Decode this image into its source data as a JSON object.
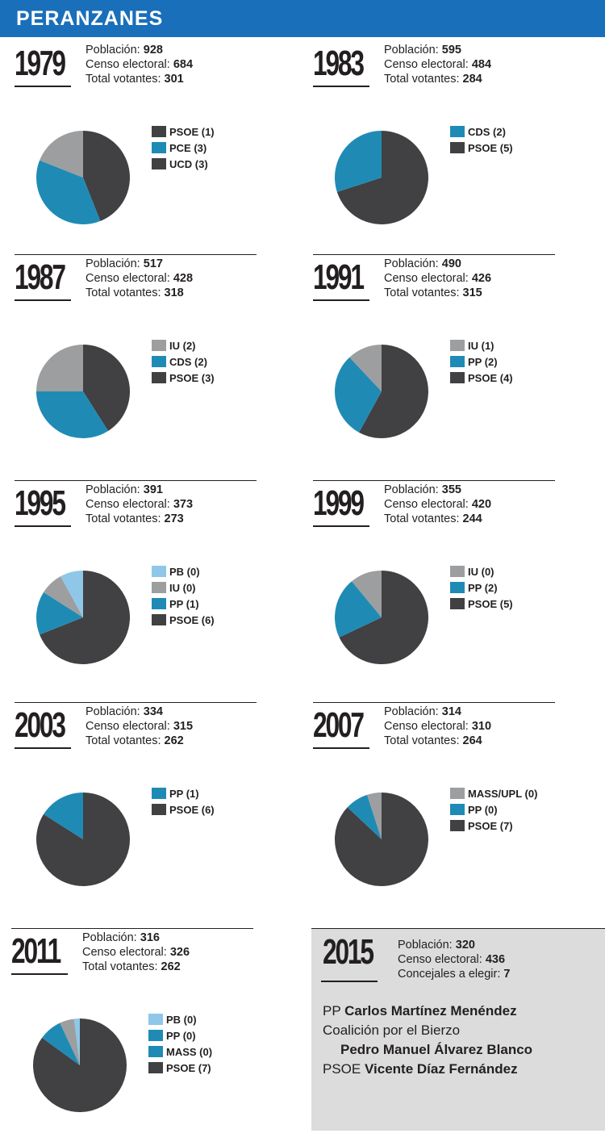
{
  "title": "PERANZANES",
  "colors": {
    "header": "#1a6fba",
    "PSOE": "#414042",
    "PP": "#1f8bb5",
    "CDS": "#1f8bb5",
    "PCE": "#1f8bb5",
    "MASS": "#1f8bb5",
    "UCD": "#414042",
    "IU": "#9d9e9f",
    "MASS/UPL": "#9d9e9f",
    "PB": "#8ec7e8"
  },
  "labels": {
    "poblacion": "Población: ",
    "censo": "Censo electoral: ",
    "votantes": "Total votantes: ",
    "concejales": "Concejales a elegir: "
  },
  "chart_data": [
    {
      "type": "pie",
      "year": "1979",
      "poblacion": "928",
      "censo": "684",
      "votantes": "301",
      "legend": [
        "PSOE (1)",
        "PCE (3)",
        "UCD (3)"
      ],
      "slices": [
        {
          "party": "UCD",
          "value": 44,
          "color": "#414042"
        },
        {
          "party": "PCE",
          "value": 37,
          "color": "#1f8bb5"
        },
        {
          "party": "PSOE",
          "value": 19,
          "color": "#9d9e9f"
        }
      ]
    },
    {
      "type": "pie",
      "year": "1983",
      "poblacion": "595",
      "censo": "484",
      "votantes": "284",
      "legend": [
        "CDS (2)",
        "PSOE (5)"
      ],
      "slices": [
        {
          "party": "PSOE",
          "value": 70,
          "color": "#414042"
        },
        {
          "party": "CDS",
          "value": 30,
          "color": "#1f8bb5"
        }
      ]
    },
    {
      "type": "pie",
      "year": "1987",
      "poblacion": "517",
      "censo": "428",
      "votantes": "318",
      "legend": [
        "IU (2)",
        "CDS (2)",
        "PSOE (3)"
      ],
      "slices": [
        {
          "party": "PSOE",
          "value": 41,
          "color": "#414042"
        },
        {
          "party": "CDS",
          "value": 34,
          "color": "#1f8bb5"
        },
        {
          "party": "IU",
          "value": 25,
          "color": "#9d9e9f"
        }
      ]
    },
    {
      "type": "pie",
      "year": "1991",
      "poblacion": "490",
      "censo": "426",
      "votantes": "315",
      "legend": [
        "IU (1)",
        "PP (2)",
        "PSOE (4)"
      ],
      "slices": [
        {
          "party": "PSOE",
          "value": 58,
          "color": "#414042"
        },
        {
          "party": "PP",
          "value": 30,
          "color": "#1f8bb5"
        },
        {
          "party": "IU",
          "value": 12,
          "color": "#9d9e9f"
        }
      ]
    },
    {
      "type": "pie",
      "year": "1995",
      "poblacion": "391",
      "censo": "373",
      "votantes": "273",
      "legend": [
        "PB (0)",
        "IU (0)",
        "PP (1)",
        "PSOE (6)"
      ],
      "slices": [
        {
          "party": "PSOE",
          "value": 69,
          "color": "#414042"
        },
        {
          "party": "PP",
          "value": 15,
          "color": "#1f8bb5"
        },
        {
          "party": "IU",
          "value": 8,
          "color": "#9d9e9f"
        },
        {
          "party": "PB",
          "value": 8,
          "color": "#8ec7e8"
        }
      ]
    },
    {
      "type": "pie",
      "year": "1999",
      "poblacion": "355",
      "censo": "420",
      "votantes": "244",
      "legend": [
        "IU (0)",
        "PP (2)",
        "PSOE (5)"
      ],
      "slices": [
        {
          "party": "PSOE",
          "value": 68,
          "color": "#414042"
        },
        {
          "party": "PP",
          "value": 21,
          "color": "#1f8bb5"
        },
        {
          "party": "IU",
          "value": 11,
          "color": "#9d9e9f"
        }
      ]
    },
    {
      "type": "pie",
      "year": "2003",
      "poblacion": "334",
      "censo": "315",
      "votantes": "262",
      "legend": [
        "PP (1)",
        "PSOE (6)"
      ],
      "slices": [
        {
          "party": "PSOE",
          "value": 84,
          "color": "#414042"
        },
        {
          "party": "PP",
          "value": 16,
          "color": "#1f8bb5"
        }
      ]
    },
    {
      "type": "pie",
      "year": "2007",
      "poblacion": "314",
      "censo": "310",
      "votantes": "264",
      "legend": [
        "MASS/UPL (0)",
        "PP (0)",
        "PSOE (7)"
      ],
      "slices": [
        {
          "party": "PSOE",
          "value": 87,
          "color": "#414042"
        },
        {
          "party": "PP",
          "value": 8,
          "color": "#1f8bb5"
        },
        {
          "party": "MASS/UPL",
          "value": 5,
          "color": "#9d9e9f"
        }
      ]
    },
    {
      "type": "pie",
      "year": "2011",
      "poblacion": "316",
      "censo": "326",
      "votantes": "262",
      "legend": [
        "PB (0)",
        "PP (0)",
        "MASS (0)",
        "PSOE (7)"
      ],
      "slices": [
        {
          "party": "PSOE",
          "value": 85,
          "color": "#414042"
        },
        {
          "party": "MASS",
          "value": 8,
          "color": "#1f8bb5"
        },
        {
          "party": "PP",
          "value": 5,
          "color": "#9d9e9f"
        },
        {
          "party": "PB",
          "value": 2,
          "color": "#8ec7e8"
        }
      ]
    }
  ],
  "y2015": {
    "year": "2015",
    "poblacion": "320",
    "censo": "436",
    "concejales": "7",
    "candidates": [
      {
        "party": "PP",
        "name": "Carlos Martínez Menéndez"
      },
      {
        "party": "Coalición por el Bierzo",
        "name": "Pedro Manuel Álvarez Blanco"
      },
      {
        "party": "PSOE",
        "name": "Vicente Díaz Fernández"
      }
    ]
  }
}
